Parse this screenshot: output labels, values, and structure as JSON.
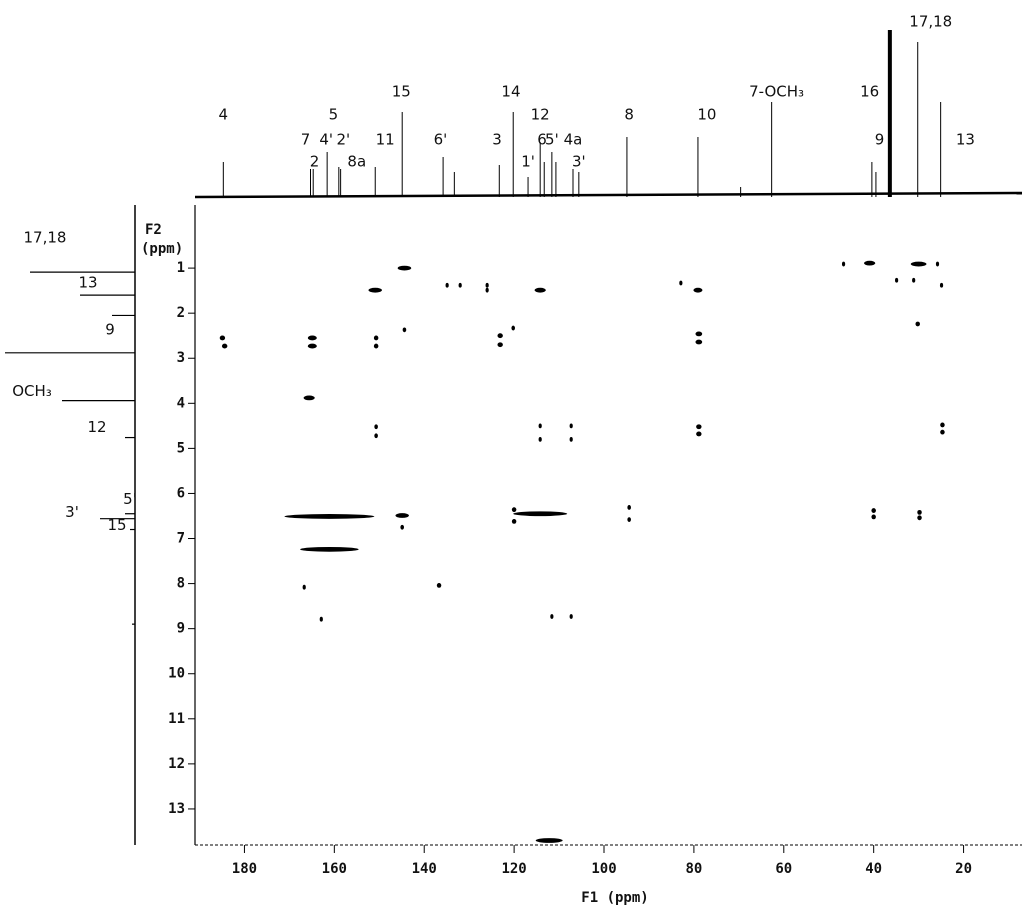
{
  "chart_data": {
    "type": "hmbc",
    "xlabel": "F1 (ppm)",
    "ylabel": [
      "F2",
      "(ppm)"
    ],
    "xlim": [
      191,
      7
    ],
    "ylim": [
      -0.4,
      13.8
    ],
    "xticks": [
      180,
      160,
      140,
      120,
      100,
      80,
      60,
      40,
      20
    ],
    "yticks": [
      1,
      2,
      3,
      4,
      5,
      6,
      7,
      8,
      9,
      10,
      11,
      12,
      13
    ],
    "color": "#000000",
    "x": [
      144.4,
      150.9,
      134.9,
      132,
      126,
      126,
      114.2,
      79.1,
      82.9,
      46.7,
      40.9,
      30,
      25.8,
      34.9,
      31.1,
      24.9,
      184.9,
      184.4,
      164.9,
      164.9,
      150.7,
      150.7,
      144.4,
      123.1,
      123.1,
      120.2,
      78.9,
      78.9,
      30.2,
      165.6,
      150.7,
      150.7,
      78.9,
      78.9,
      24.7,
      24.7,
      114.2,
      114.2,
      107.3,
      107.3,
      161.1,
      144.9,
      144.9,
      120,
      120,
      114.2,
      94.4,
      94.4,
      40,
      40,
      29.8,
      29.8,
      161.1,
      136.7,
      166.7,
      162.9,
      111.6,
      107.3,
      112.2
    ],
    "y": [
      1.0,
      1.49,
      1.38,
      1.38,
      1.38,
      1.49,
      1.49,
      1.49,
      1.33,
      0.91,
      0.89,
      0.91,
      0.91,
      1.27,
      1.27,
      1.38,
      2.55,
      2.73,
      2.55,
      2.73,
      2.55,
      2.73,
      2.37,
      2.5,
      2.7,
      2.33,
      2.46,
      2.64,
      2.24,
      3.88,
      4.52,
      4.72,
      4.52,
      4.68,
      4.48,
      4.64,
      4.5,
      4.8,
      4.5,
      4.8,
      6.51,
      6.49,
      6.75,
      6.36,
      6.62,
      6.45,
      6.31,
      6.58,
      6.38,
      6.52,
      6.42,
      6.54,
      7.24,
      8.04,
      8.08,
      8.79,
      8.73,
      8.73,
      13.7
    ],
    "widths": [
      3,
      3,
      0.6,
      0.6,
      0.6,
      0.6,
      2.5,
      2,
      0.6,
      0.6,
      2.5,
      3.5,
      0.6,
      0.6,
      0.6,
      0.6,
      1.2,
      1.2,
      2,
      2,
      1,
      1,
      0.8,
      1.2,
      1.2,
      0.8,
      1.5,
      1.5,
      1,
      2.5,
      0.8,
      0.8,
      1.2,
      1.2,
      1,
      1,
      0.4,
      0.4,
      0.4,
      0.4,
      20,
      3,
      0.8,
      1,
      1,
      12,
      0.8,
      0.8,
      1,
      1,
      1,
      1,
      13,
      1,
      0.6,
      0.6,
      0.6,
      0.6,
      6
    ],
    "top_projection": {
      "ppm": [
        184.7,
        165.3,
        164.7,
        161.6,
        159,
        158.6,
        150.9,
        144.9,
        135.8,
        133.3,
        123.3,
        120.2,
        116.9,
        114.2,
        113.3,
        111.6,
        110.7,
        106.9,
        105.6,
        94.9,
        79.1,
        69.6,
        62.7,
        40.4,
        39.5,
        36.4,
        30.2,
        25.1
      ],
      "intensity": [
        35,
        28,
        28,
        45,
        30,
        28,
        30,
        85,
        40,
        25,
        32,
        85,
        20,
        55,
        35,
        45,
        35,
        28,
        25,
        60,
        60,
        10,
        95,
        35,
        25,
        167,
        155,
        95
      ]
    },
    "top_labels": [
      {
        "text": "4",
        "ppm": 184.7
      },
      {
        "text": "7",
        "ppm": 166.4
      },
      {
        "text": "2",
        "ppm": 164.4
      },
      {
        "text": "4'",
        "ppm": 161.8
      },
      {
        "text": "5",
        "ppm": 160.2
      },
      {
        "text": "2'",
        "ppm": 158
      },
      {
        "text": "8a",
        "ppm": 155
      },
      {
        "text": "11",
        "ppm": 148.7
      },
      {
        "text": "15",
        "ppm": 145.1
      },
      {
        "text": "6'",
        "ppm": 136.4
      },
      {
        "text": "3",
        "ppm": 123.8
      },
      {
        "text": "14",
        "ppm": 120.7
      },
      {
        "text": "12",
        "ppm": 114.2
      },
      {
        "text": "1'",
        "ppm": 116.9
      },
      {
        "text": "6",
        "ppm": 113.8
      },
      {
        "text": "5'",
        "ppm": 111.6
      },
      {
        "text": "4a",
        "ppm": 106.9
      },
      {
        "text": "3'",
        "ppm": 105.6
      },
      {
        "text": "8",
        "ppm": 94.4
      },
      {
        "text": "10",
        "ppm": 77.1
      },
      {
        "text": "7-OCH₃",
        "ppm": 61.6
      },
      {
        "text": "16",
        "ppm": 40.9
      },
      {
        "text": "9",
        "ppm": 38.7
      },
      {
        "text": "17,18",
        "ppm": 27.3
      },
      {
        "text": "13",
        "ppm": 19.6
      }
    ],
    "left_projection": {
      "ppm": [
        1.09,
        1.6,
        2.05,
        2.88,
        3.94,
        4.76,
        6.45,
        6.56,
        6.8,
        8.9
      ],
      "intensity": [
        105,
        55,
        23,
        130,
        73,
        10,
        10,
        35,
        5,
        3
      ]
    },
    "left_labels": [
      {
        "text": "17,18",
        "ppm": 1.09
      },
      {
        "text": "13",
        "ppm": 1.6
      },
      {
        "text": "9",
        "ppm": 2.88
      },
      {
        "text": "OCH₃",
        "ppm": 3.94
      },
      {
        "text": "12",
        "ppm": 4.76
      },
      {
        "text": "5'",
        "ppm": 6.45
      },
      {
        "text": "3'",
        "ppm": 6.56
      },
      {
        "text": "15",
        "ppm": 6.8
      }
    ]
  }
}
